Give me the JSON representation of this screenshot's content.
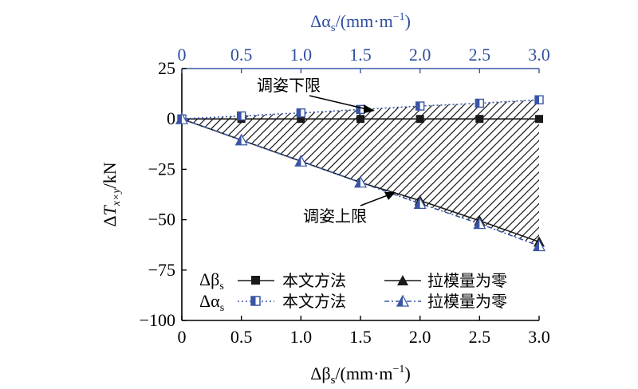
{
  "chart_data": {
    "type": "line",
    "x_bottom": {
      "label": "Δβ",
      "label_sub": "s",
      "label_units": "/(mm·m",
      "label_exp": "−1",
      "label_close": ")",
      "ticks": [
        "0",
        "0.5",
        "1.0",
        "1.5",
        "2.0",
        "2.5",
        "3.0"
      ],
      "range": [
        0,
        3
      ]
    },
    "x_top": {
      "label": "Δα",
      "label_sub": "s",
      "label_units": "/(mm·m",
      "label_exp": "−1",
      "label_close": ")",
      "ticks": [
        "0",
        "0.5",
        "1.0",
        "1.5",
        "2.0",
        "2.5",
        "3.0"
      ],
      "range": [
        0,
        3
      ]
    },
    "y": {
      "label_delta": "Δ",
      "label_T": "T",
      "label_sub": "x×y",
      "label_units": "/kN",
      "ticks": [
        "25",
        "0",
        "−25",
        "−50",
        "−75",
        "−100"
      ],
      "tick_values": [
        25,
        0,
        -25,
        -50,
        -75,
        -100
      ],
      "range": [
        -100,
        25
      ]
    },
    "x": [
      0,
      0.5,
      1.0,
      1.5,
      2.0,
      2.5,
      3.0
    ],
    "series": [
      {
        "group": "Δβ",
        "group_sub": "s",
        "name": "本文方法",
        "marker": "square",
        "color": "#1a1a1a",
        "line": "solid",
        "values": [
          0,
          0,
          0,
          0,
          0,
          0,
          0
        ]
      },
      {
        "group": "Δβ",
        "group_sub": "s",
        "name": "拉模量为零",
        "marker": "triangle",
        "color": "#1a1a1a",
        "line": "solid",
        "values": [
          0,
          -10.5,
          -21,
          -31.5,
          -40.5,
          -50.5,
          -61
        ]
      },
      {
        "group": "Δα",
        "group_sub": "s",
        "name": "本文方法",
        "marker": "half-square",
        "color": "#3a55a5",
        "line": "dotted",
        "values": [
          0,
          1.5,
          3,
          4.7,
          6.4,
          7.8,
          9.5
        ]
      },
      {
        "group": "Δα",
        "group_sub": "s",
        "name": "拉模量为零",
        "marker": "half-triangle",
        "color": "#3a55a5",
        "line": "dashed",
        "values": [
          0,
          -10.5,
          -21,
          -31.5,
          -42,
          -52,
          -63
        ]
      }
    ],
    "annotations": [
      {
        "text": "调姿下限"
      },
      {
        "text": "调姿上限"
      }
    ],
    "shaded_region": "between Δα 本文方法 and Δα 拉模量为零"
  }
}
